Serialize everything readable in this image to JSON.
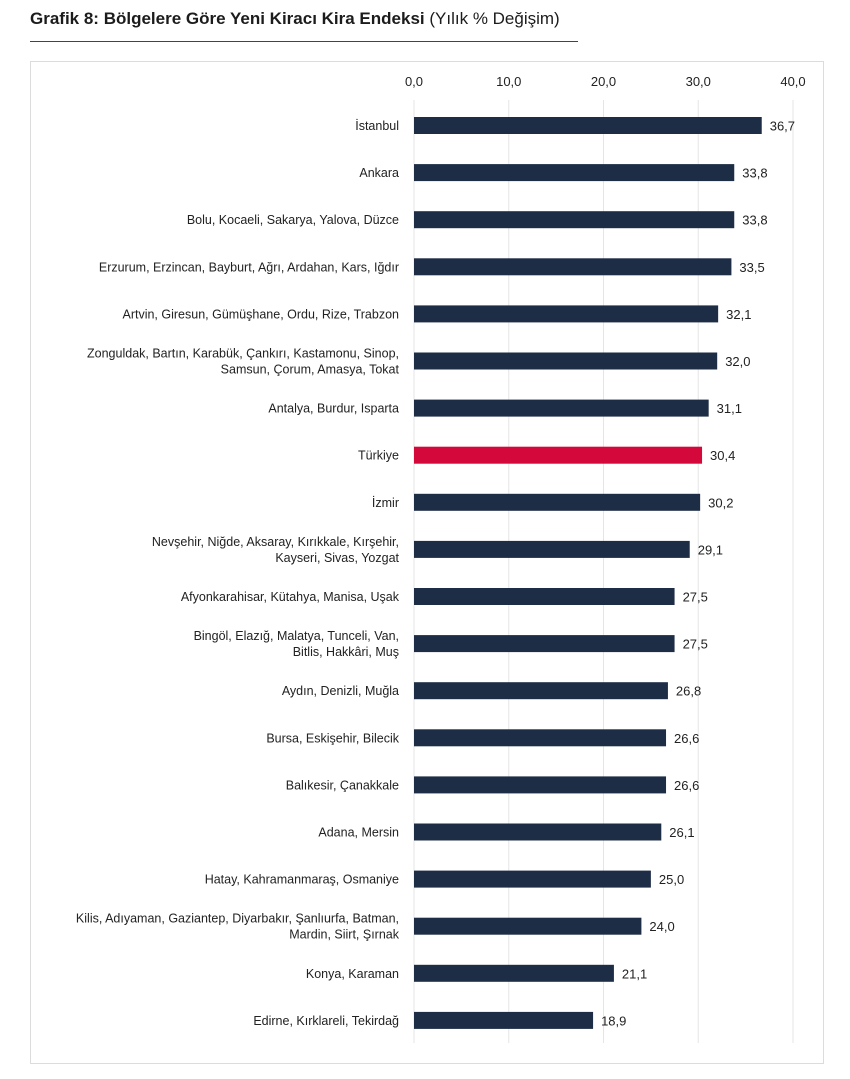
{
  "title": {
    "bold": "Grafik 8: Bölgelere Göre Yeni Kiracı Kira Endeksi",
    "normal": "(Yılık % Değişim)"
  },
  "colors": {
    "bar": "#1e2d46",
    "highlight": "#d4083a",
    "grid": "#e5e5e5"
  },
  "chart_data": {
    "type": "bar",
    "orientation": "horizontal",
    "title": "Grafik 8: Bölgelere Göre Yeni Kiracı Kira Endeksi (Yılık % Değişim)",
    "xlim": [
      0,
      40
    ],
    "ticks": [
      0,
      10,
      20,
      30,
      40
    ],
    "tick_labels": [
      "0,0",
      "10,0",
      "20,0",
      "30,0",
      "40,0"
    ],
    "axis_position": "top",
    "grid": true,
    "highlight_category": "Türkiye",
    "categories": [
      [
        "İstanbul"
      ],
      [
        "Ankara"
      ],
      [
        "Bolu, Kocaeli, Sakarya, Yalova, Düzce"
      ],
      [
        "Erzurum, Erzincan, Bayburt, Ağrı, Ardahan, Kars, Iğdır"
      ],
      [
        "Artvin, Giresun, Gümüşhane, Ordu, Rize, Trabzon"
      ],
      [
        "Zonguldak, Bartın, Karabük, Çankırı, Kastamonu, Sinop,",
        "Samsun, Çorum, Amasya, Tokat"
      ],
      [
        "Antalya, Burdur, Isparta"
      ],
      [
        "Türkiye"
      ],
      [
        "İzmir"
      ],
      [
        "Nevşehir, Niğde, Aksaray, Kırıkkale, Kırşehir,",
        "Kayseri, Sivas, Yozgat"
      ],
      [
        "Afyonkarahisar, Kütahya, Manisa, Uşak"
      ],
      [
        "Bingöl, Elazığ, Malatya, Tunceli, Van,",
        "Bitlis, Hakkâri, Muş"
      ],
      [
        "Aydın, Denizli, Muğla"
      ],
      [
        "Bursa, Eskişehir, Bilecik"
      ],
      [
        "Balıkesir, Çanakkale"
      ],
      [
        "Adana, Mersin"
      ],
      [
        "Hatay, Kahramanmaraş, Osmaniye"
      ],
      [
        "Kilis, Adıyaman, Gaziantep, Diyarbakır, Şanlıurfa, Batman,",
        "Mardin, Siirt, Şırnak"
      ],
      [
        "Konya, Karaman"
      ],
      [
        "Edirne, Kırklareli, Tekirdağ"
      ]
    ],
    "values": [
      36.7,
      33.8,
      33.8,
      33.5,
      32.1,
      32.0,
      31.1,
      30.4,
      30.2,
      29.1,
      27.5,
      27.5,
      26.8,
      26.6,
      26.6,
      26.1,
      25.0,
      24.0,
      21.1,
      18.9
    ],
    "value_labels": [
      "36,7",
      "33,8",
      "33,8",
      "33,5",
      "32,1",
      "32,0",
      "31,1",
      "30,4",
      "30,2",
      "29,1",
      "27,5",
      "27,5",
      "26,8",
      "26,6",
      "26,6",
      "26,1",
      "25,0",
      "24,0",
      "21,1",
      "18,9"
    ]
  }
}
